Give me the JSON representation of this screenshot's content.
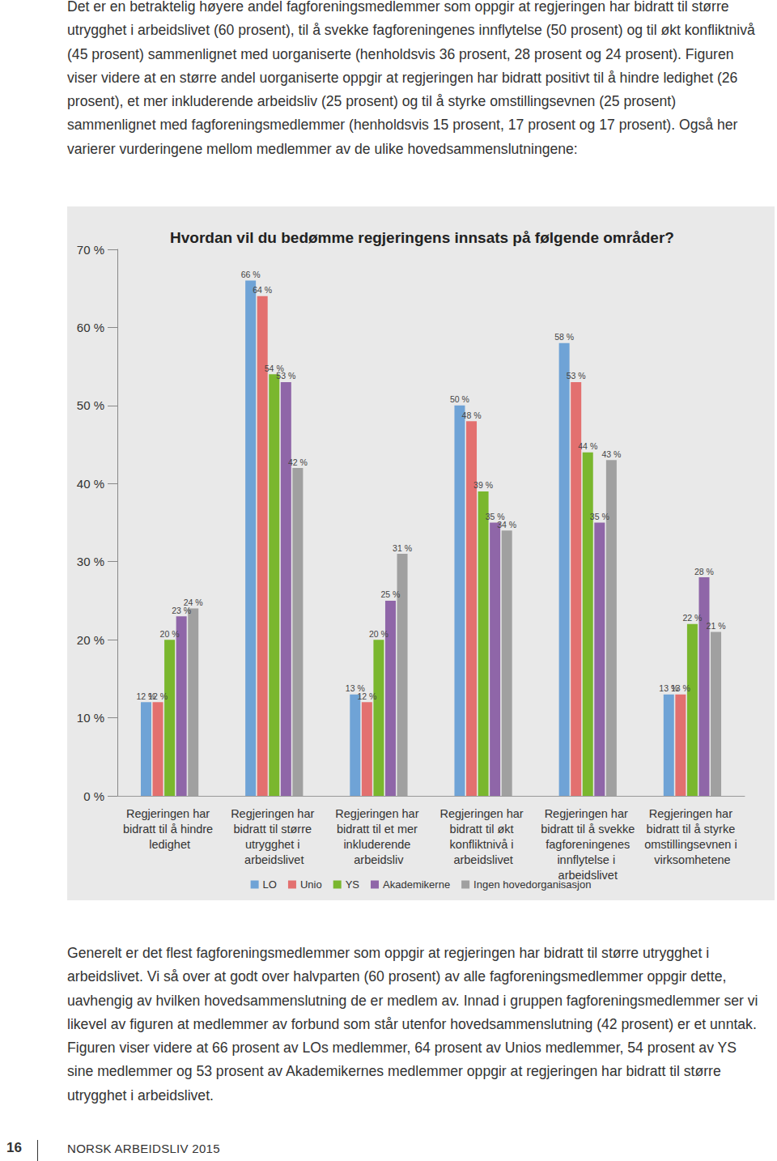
{
  "page": {
    "text_above": "Det er en betraktelig høyere andel fagforeningsmedlemmer som oppgir at regjeringen har bidratt til større utrygghet i arbeidslivet (60 prosent), til å svekke fagforeningenes innflytelse (50 prosent) og til økt konfliktnivå (45 prosent) sammenlignet med uorganiserte (henholdsvis 36 prosent, 28 prosent og 24 prosent). Figuren viser videre at en større andel uorganiserte oppgir at regjeringen har bidratt positivt til å hindre ledighet (26 prosent), et mer inkluderende arbeidsliv (25 prosent) og til å styrke omstillingsevnen (25 prosent) sammenlignet med fagforeningsmedlemmer (henholdsvis 15 prosent, 17 prosent og 17 prosent). Også her varierer vurderingene mellom medlemmer av de ulike hovedsammenslutningene:",
    "text_below": "Generelt er det flest fagforeningsmedlemmer som oppgir at regjeringen har bidratt til større utrygghet i arbeidslivet. Vi så over at godt over halvparten (60 prosent) av alle fagforeningsmedlemmer oppgir dette, uavhengig av hvilken hovedsammenslutning de er medlem av. Innad i gruppen fagforeningsmedlemmer ser vi likevel av figuren at medlemmer av forbund som står utenfor hovedsammenslutning (42 prosent) er et unntak. Figuren viser videre at 66 prosent av LOs medlemmer, 64 prosent av Unios medlemmer, 54 prosent av YS sine medlemmer og 53 prosent av Akademikernes medlemmer oppgir at regjeringen har bidratt til større utrygghet i arbeidslivet.",
    "footer": {
      "page_number": "16",
      "publication": "NORSK ARBEIDSLIV 2015"
    }
  },
  "chart_data": {
    "type": "bar",
    "title": "Hvordan vil du bedømme regjeringens innsats på følgende områder?",
    "categories": [
      "Regjeringen har bidratt til å hindre ledighet",
      "Regjeringen har bidratt til større utrygghet i arbeidslivet",
      "Regjeringen har bidratt til et mer inkluderende arbeidsliv",
      "Regjeringen har bidratt til økt konfliktnivå i arbeidslivet",
      "Regjeringen har bidratt til å svekke fagforeningenes innflytelse i arbeidslivet",
      "Regjeringen har bidratt til å styrke omstillingsevnen i virksomhetene"
    ],
    "series": [
      {
        "name": "LO",
        "color": "#6fa3d6",
        "values": [
          12,
          66,
          13,
          50,
          58,
          13
        ],
        "value_labels": [
          "12 %",
          "66 %",
          "13 %",
          "50 %",
          "58 %",
          "13 %"
        ]
      },
      {
        "name": "Unio",
        "color": "#e3706f",
        "values": [
          12,
          64,
          12,
          48,
          53,
          13
        ],
        "value_labels": [
          "12 %",
          "64 %",
          "12 %",
          "48 %",
          "53 %",
          "13 %"
        ]
      },
      {
        "name": "YS",
        "color": "#7ab72e",
        "values": [
          20,
          54,
          20,
          39,
          44,
          22
        ],
        "value_labels": [
          "20 %",
          "54 %",
          "20 %",
          "39 %",
          "44 %",
          "22 %"
        ]
      },
      {
        "name": "Akademikerne",
        "color": "#8f66a8",
        "values": [
          23,
          53,
          25,
          35,
          35,
          28
        ],
        "value_labels": [
          "23 %",
          "53 %",
          "25 %",
          "35 %",
          "35 %",
          "28 %"
        ]
      },
      {
        "name": "Ingen hovedorganisasjon",
        "color": "#a0a0a0",
        "values": [
          24,
          42,
          31,
          34,
          43,
          21
        ],
        "value_labels": [
          "24 %",
          "42 %",
          "31 %",
          "34 %",
          "43 %",
          "21 %"
        ]
      }
    ],
    "ylim": [
      0,
      70
    ],
    "yticks": [
      {
        "value": 0,
        "label": "0 %"
      },
      {
        "value": 10,
        "label": "10 %"
      },
      {
        "value": 20,
        "label": "20 %"
      },
      {
        "value": 30,
        "label": "30 %"
      },
      {
        "value": 40,
        "label": "40 %"
      },
      {
        "value": 50,
        "label": "50 %"
      },
      {
        "value": 60,
        "label": "60 %"
      },
      {
        "value": 70,
        "label": "70 %"
      }
    ],
    "grid": false,
    "legend": "bottom",
    "data_labels": true
  }
}
